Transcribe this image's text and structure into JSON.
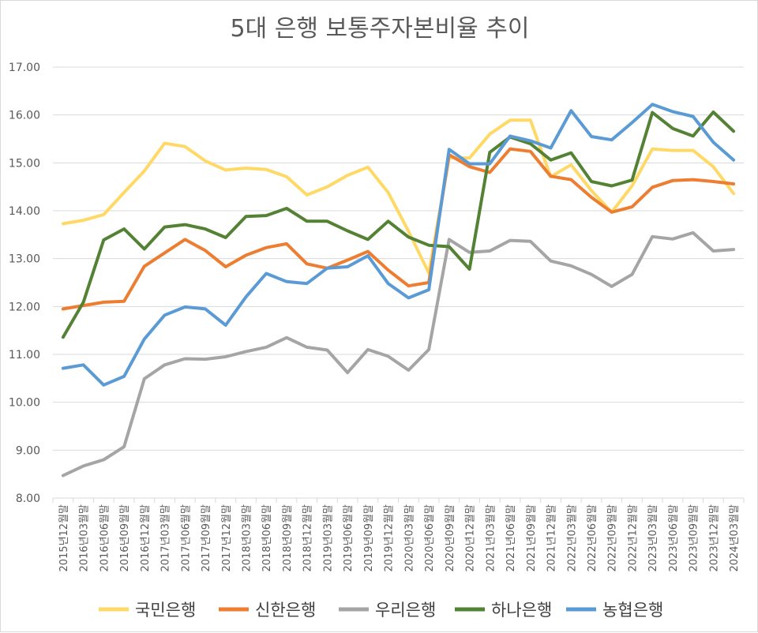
{
  "chart_data": {
    "type": "line",
    "title": "5대 은행 보통주자본비율 추이",
    "xlabel": "",
    "ylabel": "",
    "ylim": [
      8,
      17
    ],
    "yticks": [
      "8.00",
      "9.00",
      "10.00",
      "11.00",
      "12.00",
      "13.00",
      "14.00",
      "15.00",
      "16.00",
      "17.00"
    ],
    "gridlines": "horizontal",
    "legend_position": "bottom",
    "categories": [
      "2015년12월말",
      "2016년03월말",
      "2016년06월말",
      "2016년09월말",
      "2016년12월말",
      "2017년03월말",
      "2017년06월말",
      "2017년09월말",
      "2017년12월말",
      "2018년03월말",
      "2018년06월말",
      "2018년09월말",
      "2018년12월말",
      "2019년03월말",
      "2019년06월말",
      "2019년09월말",
      "2019년12월말",
      "2020년03월말",
      "2020년06월말",
      "2020년09월말",
      "2020년12월말",
      "2021년03월말",
      "2021년06월말",
      "2021년09월말",
      "2021년12월말",
      "2022년03월말",
      "2022년06월말",
      "2022년09월말",
      "2022년12월말",
      "2023년03월말",
      "2023년06월말",
      "2023년09월말",
      "2023년12월말",
      "2024년03월말"
    ],
    "series": [
      {
        "name": "국민은행",
        "color": "#ffd966",
        "values": [
          13.73,
          13.8,
          13.92,
          14.38,
          14.83,
          15.41,
          15.34,
          15.04,
          14.85,
          14.89,
          14.86,
          14.71,
          14.33,
          14.5,
          14.74,
          14.91,
          14.38,
          13.57,
          12.7,
          15.11,
          15.1,
          15.6,
          15.89,
          15.89,
          14.71,
          14.96,
          14.42,
          13.97,
          14.52,
          15.29,
          15.26,
          15.26,
          14.92,
          14.36
        ]
      },
      {
        "name": "신한은행",
        "color": "#ed7d31",
        "values": [
          11.95,
          12.02,
          12.09,
          12.11,
          12.84,
          13.12,
          13.4,
          13.17,
          12.83,
          13.07,
          13.23,
          13.31,
          12.89,
          12.8,
          12.97,
          13.15,
          12.76,
          12.43,
          12.5,
          15.17,
          14.92,
          14.8,
          15.29,
          15.24,
          14.72,
          14.65,
          14.28,
          13.97,
          14.08,
          14.49,
          14.63,
          14.65,
          14.61,
          14.56
        ]
      },
      {
        "name": "우리은행",
        "color": "#a5a5a5",
        "values": [
          8.47,
          8.67,
          8.8,
          9.07,
          10.49,
          10.78,
          10.91,
          10.9,
          10.95,
          11.06,
          11.15,
          11.35,
          11.15,
          11.09,
          10.62,
          11.1,
          10.96,
          10.67,
          11.1,
          13.4,
          13.13,
          13.16,
          13.38,
          13.36,
          12.95,
          12.85,
          12.67,
          12.42,
          12.67,
          13.46,
          13.41,
          13.54,
          13.16,
          13.19
        ]
      },
      {
        "name": "하나은행",
        "color": "#548235",
        "values": [
          11.36,
          12.09,
          13.39,
          13.62,
          13.2,
          13.66,
          13.71,
          13.62,
          13.44,
          13.88,
          13.9,
          14.05,
          13.78,
          13.78,
          13.58,
          13.4,
          13.78,
          13.45,
          13.28,
          13.25,
          12.78,
          15.22,
          15.54,
          15.4,
          15.06,
          15.21,
          14.61,
          14.52,
          14.64,
          16.05,
          15.72,
          15.56,
          16.06,
          15.66
        ]
      },
      {
        "name": "농협은행",
        "color": "#5b9bd5",
        "values": [
          10.71,
          10.78,
          10.36,
          10.54,
          11.32,
          11.82,
          11.99,
          11.95,
          11.61,
          12.2,
          12.69,
          12.52,
          12.48,
          12.8,
          12.83,
          13.06,
          12.48,
          12.18,
          12.35,
          15.28,
          14.98,
          14.98,
          15.56,
          15.46,
          15.31,
          16.09,
          15.55,
          15.48,
          15.84,
          16.22,
          16.07,
          15.97,
          15.43,
          15.06
        ]
      }
    ]
  }
}
